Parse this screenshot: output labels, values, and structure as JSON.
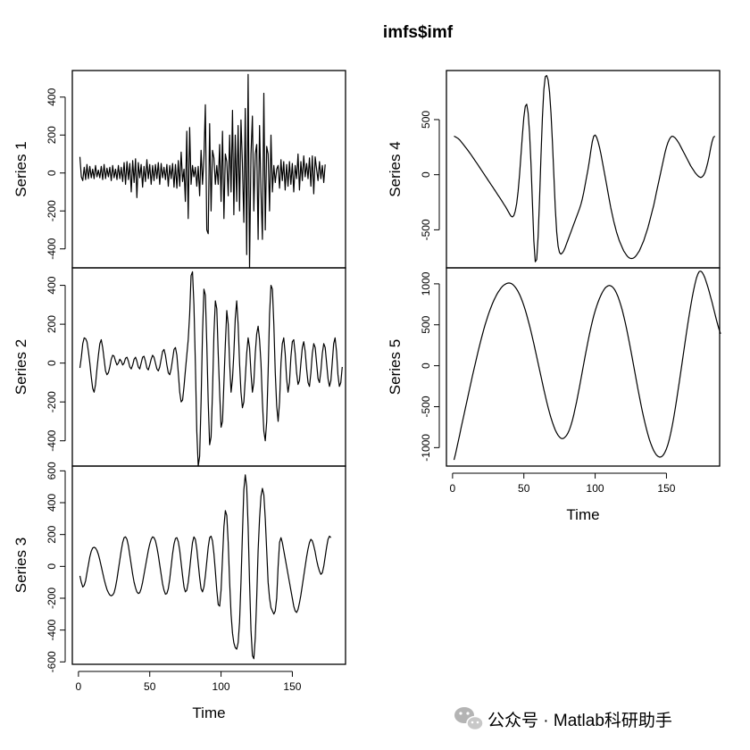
{
  "figure": {
    "title": "imfs$imf",
    "watermark": "公众号 · Matlab科研助手"
  },
  "chart_data": [
    {
      "type": "line",
      "ylabel": "Series 1",
      "xlabel": "",
      "xlim": [
        -4.3,
        187.3
      ],
      "ylim": [
        -500,
        540
      ],
      "yticks": [
        -400,
        -200,
        0,
        200,
        400
      ],
      "xticks": [],
      "x_start": 1,
      "x_step": 1,
      "y": [
        85,
        -20,
        -40,
        30,
        -35,
        45,
        -30,
        35,
        -25,
        20,
        -30,
        40,
        -20,
        15,
        -25,
        35,
        -35,
        45,
        -30,
        25,
        -20,
        30,
        -40,
        40,
        -25,
        20,
        -35,
        40,
        -30,
        30,
        -45,
        55,
        -60,
        60,
        -35,
        50,
        -100,
        65,
        -50,
        75,
        -130,
        55,
        -25,
        45,
        -75,
        35,
        -45,
        70,
        -30,
        45,
        -60,
        40,
        -40,
        45,
        -30,
        55,
        -60,
        50,
        -25,
        30,
        -35,
        45,
        -70,
        40,
        -30,
        50,
        -75,
        45,
        -80,
        65,
        -70,
        110,
        -45,
        20,
        -150,
        220,
        -240,
        240,
        -60,
        40,
        -20,
        30,
        -70,
        35,
        -120,
        120,
        -60,
        80,
        360,
        -300,
        -320,
        260,
        -200,
        120,
        80,
        -60,
        40,
        -60,
        150,
        -150,
        220,
        -240,
        100,
        60,
        -120,
        200,
        -100,
        330,
        -220,
        200,
        -150,
        250,
        -200,
        280,
        50,
        -260,
        340,
        -430,
        520,
        -500,
        100,
        300,
        -200,
        100,
        150,
        -350,
        250,
        -100,
        -350,
        420,
        -300,
        140,
        100,
        -200,
        200,
        -100,
        40,
        -50,
        20,
        40,
        -80,
        70,
        -40,
        60,
        -90,
        45,
        -70,
        60,
        -60,
        50,
        -100,
        40,
        -30,
        100,
        -90,
        60,
        -40,
        90,
        -20,
        50,
        -30,
        80,
        -70,
        90,
        -110,
        85,
        20,
        -40,
        60,
        -30,
        40,
        -50,
        45
      ],
      "color": "#000000"
    },
    {
      "type": "line",
      "ylabel": "Series 2",
      "xlabel": "",
      "xlim": [
        -4.3,
        187.3
      ],
      "ylim": [
        -530,
        490
      ],
      "yticks": [
        -400,
        -200,
        0,
        200,
        400
      ],
      "xticks": [],
      "x_start": 1,
      "x_step": 1,
      "y": [
        -25,
        30,
        100,
        130,
        125,
        110,
        60,
        0,
        -70,
        -130,
        -150,
        -110,
        -30,
        40,
        100,
        120,
        80,
        20,
        -40,
        -60,
        -50,
        -20,
        20,
        40,
        35,
        10,
        -10,
        0,
        20,
        10,
        -10,
        0,
        25,
        30,
        10,
        -20,
        -30,
        -10,
        20,
        30,
        10,
        -20,
        -30,
        0,
        30,
        35,
        10,
        -25,
        -35,
        -10,
        20,
        40,
        30,
        0,
        -30,
        -40,
        -20,
        20,
        60,
        70,
        40,
        -10,
        -50,
        -60,
        -30,
        20,
        70,
        80,
        40,
        -50,
        -150,
        -200,
        -190,
        -120,
        -40,
        40,
        120,
        250,
        450,
        470,
        300,
        0,
        -350,
        -530,
        -480,
        -200,
        150,
        380,
        350,
        100,
        -200,
        -420,
        -380,
        -150,
        150,
        320,
        280,
        50,
        -150,
        -330,
        -300,
        -100,
        100,
        270,
        200,
        0,
        -150,
        -80,
        50,
        230,
        320,
        200,
        0,
        -150,
        -230,
        -200,
        -80,
        50,
        130,
        80,
        -50,
        -150,
        -100,
        50,
        150,
        190,
        120,
        0,
        -200,
        -350,
        -400,
        -300,
        -50,
        250,
        400,
        380,
        200,
        -50,
        -220,
        -300,
        -200,
        0,
        100,
        130,
        50,
        -80,
        -150,
        -100,
        30,
        110,
        120,
        50,
        -50,
        -110,
        -90,
        0,
        80,
        110,
        60,
        -30,
        -100,
        -120,
        -50,
        50,
        100,
        80,
        0,
        -80,
        -100,
        -40,
        50,
        100,
        80,
        0,
        -80,
        -120,
        -90,
        0,
        100,
        130,
        60,
        -60,
        -120,
        -100,
        -20
      ],
      "color": "#000000"
    },
    {
      "type": "line",
      "ylabel": "Series 3",
      "xlabel": "Time",
      "xlim": [
        -4.3,
        187.3
      ],
      "ylim": [
        -615,
        630
      ],
      "yticks": [
        -600,
        -400,
        -200,
        0,
        200,
        400,
        600
      ],
      "xticks": [
        0,
        50,
        100,
        150
      ],
      "x_start": 1,
      "x_step": 1,
      "y": [
        -60,
        -100,
        -130,
        -120,
        -90,
        -40,
        10,
        60,
        95,
        115,
        120,
        115,
        100,
        75,
        40,
        0,
        -40,
        -80,
        -115,
        -145,
        -165,
        -180,
        -185,
        -180,
        -165,
        -130,
        -80,
        -20,
        40,
        100,
        150,
        180,
        185,
        170,
        130,
        70,
        10,
        -50,
        -100,
        -135,
        -160,
        -170,
        -165,
        -140,
        -100,
        -50,
        0,
        50,
        100,
        140,
        170,
        185,
        180,
        160,
        120,
        70,
        10,
        -50,
        -110,
        -150,
        -175,
        -170,
        -140,
        -80,
        0,
        80,
        140,
        175,
        180,
        155,
        100,
        20,
        -60,
        -130,
        -160,
        -150,
        -100,
        -20,
        70,
        150,
        185,
        170,
        110,
        20,
        -70,
        -140,
        -160,
        -130,
        -60,
        30,
        120,
        180,
        190,
        160,
        80,
        -30,
        -150,
        -240,
        -250,
        -150,
        50,
        250,
        350,
        320,
        150,
        -100,
        -300,
        -420,
        -480,
        -510,
        -520,
        -480,
        -350,
        -100,
        200,
        480,
        575,
        500,
        250,
        -100,
        -400,
        -560,
        -580,
        -450,
        -200,
        100,
        300,
        440,
        490,
        450,
        300,
        100,
        -100,
        -200,
        -260,
        -280,
        -300,
        -280,
        -200,
        0,
        150,
        180,
        150,
        100,
        50,
        0,
        -50,
        -100,
        -150,
        -200,
        -250,
        -280,
        -290,
        -270,
        -230,
        -180,
        -120,
        -60,
        0,
        60,
        110,
        150,
        170,
        160,
        130,
        90,
        40,
        0,
        -30,
        -50,
        -40,
        0,
        60,
        120,
        170,
        190,
        180
      ],
      "color": "#000000"
    },
    {
      "type": "line",
      "ylabel": "Series 4",
      "xlabel": "",
      "xlim": [
        -4.3,
        187.3
      ],
      "ylim": [
        -845,
        945
      ],
      "yticks": [
        -500,
        0,
        500
      ],
      "xticks": [],
      "x_start": 1,
      "x_step": 1,
      "y": [
        350,
        343,
        335,
        327,
        315,
        300,
        284,
        268,
        251,
        234,
        217,
        199,
        181,
        162,
        143,
        124,
        105,
        86,
        66,
        47,
        27,
        8,
        -12,
        -31,
        -51,
        -70,
        -90,
        -109,
        -129,
        -148,
        -168,
        -188,
        -207,
        -227,
        -247,
        -268,
        -288,
        -310,
        -333,
        -357,
        -375,
        -383,
        -370,
        -330,
        -260,
        -150,
        0,
        180,
        360,
        520,
        620,
        640,
        560,
        380,
        100,
        -250,
        -600,
        -790,
        -770,
        -560,
        -220,
        170,
        520,
        770,
        890,
        900,
        860,
        750,
        560,
        300,
        0,
        -300,
        -520,
        -650,
        -705,
        -720,
        -710,
        -690,
        -660,
        -625,
        -590,
        -555,
        -520,
        -485,
        -450,
        -415,
        -380,
        -345,
        -310,
        -270,
        -220,
        -160,
        -90,
        -20,
        50,
        130,
        220,
        300,
        350,
        360,
        340,
        300,
        250,
        190,
        120,
        50,
        -20,
        -90,
        -160,
        -230,
        -300,
        -360,
        -420,
        -470,
        -520,
        -560,
        -600,
        -630,
        -660,
        -690,
        -710,
        -730,
        -745,
        -755,
        -760,
        -760,
        -755,
        -745,
        -730,
        -710,
        -690,
        -660,
        -630,
        -600,
        -560,
        -520,
        -480,
        -430,
        -380,
        -330,
        -280,
        -220,
        -160,
        -100,
        -40,
        20,
        80,
        140,
        200,
        250,
        290,
        320,
        340,
        350,
        345,
        335,
        320,
        300,
        280,
        255,
        230,
        205,
        180,
        155,
        130,
        105,
        80,
        60,
        40,
        20,
        5,
        -10,
        -20,
        -25,
        -20,
        -5,
        20,
        60,
        110,
        170,
        240,
        300,
        340,
        350
      ],
      "color": "#000000"
    },
    {
      "type": "line",
      "ylabel": "Series 5",
      "xlabel": "Time",
      "xlim": [
        -4.3,
        187.3
      ],
      "ylim": [
        -1225,
        1195
      ],
      "yticks": [
        -1000,
        -500,
        0,
        500,
        1000
      ],
      "xticks": [
        0,
        50,
        100,
        150
      ],
      "x_start": 1,
      "x_step": 1,
      "y": [
        -1150,
        -1080,
        -1000,
        -920,
        -840,
        -760,
        -680,
        -600,
        -520,
        -440,
        -360,
        -280,
        -200,
        -120,
        -45,
        30,
        105,
        180,
        250,
        320,
        385,
        450,
        510,
        565,
        620,
        670,
        715,
        760,
        800,
        835,
        870,
        900,
        925,
        950,
        970,
        985,
        995,
        1005,
        1010,
        1010,
        1005,
        995,
        980,
        960,
        935,
        905,
        870,
        830,
        785,
        735,
        680,
        620,
        555,
        490,
        420,
        345,
        270,
        190,
        110,
        30,
        -50,
        -130,
        -210,
        -290,
        -365,
        -440,
        -510,
        -575,
        -635,
        -690,
        -740,
        -785,
        -820,
        -850,
        -870,
        -885,
        -890,
        -885,
        -870,
        -850,
        -820,
        -780,
        -730,
        -670,
        -600,
        -520,
        -440,
        -350,
        -260,
        -165,
        -70,
        25,
        120,
        210,
        300,
        385,
        465,
        540,
        610,
        670,
        725,
        775,
        820,
        860,
        895,
        925,
        950,
        965,
        975,
        980,
        975,
        965,
        945,
        920,
        885,
        845,
        795,
        740,
        680,
        610,
        535,
        455,
        370,
        280,
        190,
        95,
        0,
        -95,
        -190,
        -285,
        -375,
        -465,
        -550,
        -630,
        -705,
        -775,
        -840,
        -900,
        -950,
        -995,
        -1035,
        -1065,
        -1090,
        -1105,
        -1115,
        -1115,
        -1105,
        -1085,
        -1055,
        -1015,
        -965,
        -900,
        -825,
        -740,
        -645,
        -540,
        -430,
        -315,
        -200,
        -80,
        40,
        160,
        280,
        400,
        515,
        625,
        730,
        830,
        920,
        1000,
        1070,
        1120,
        1150,
        1155,
        1140,
        1110,
        1070,
        1020,
        965,
        905,
        840,
        775,
        705,
        635,
        565,
        500,
        440,
        390
      ],
      "color": "#000000"
    }
  ]
}
